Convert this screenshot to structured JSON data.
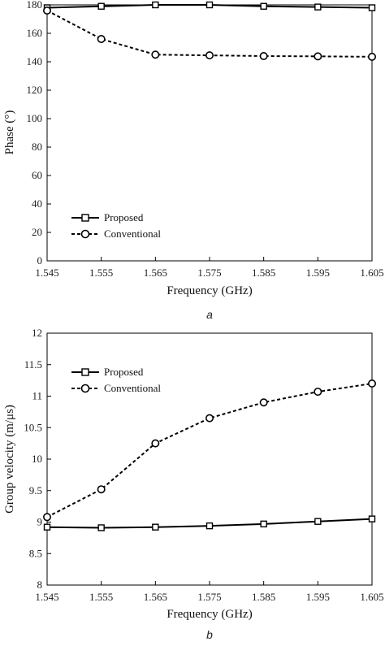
{
  "chart_data": [
    {
      "type": "line",
      "panel_label": "a",
      "xlabel": "Frequency (GHz)",
      "ylabel": "Phase (°)",
      "x": [
        1.545,
        1.555,
        1.565,
        1.575,
        1.585,
        1.595,
        1.605
      ],
      "xticks": [
        "1.545",
        "1.555",
        "1.565",
        "1.575",
        "1.585",
        "1.595",
        "1.605"
      ],
      "xlim": [
        1.545,
        1.605
      ],
      "ylim": [
        0,
        180
      ],
      "yticks": [
        "0",
        "20",
        "40",
        "60",
        "80",
        "100",
        "120",
        "140",
        "160",
        "180"
      ],
      "legend_position": "bottom-left",
      "series": [
        {
          "name": "Proposed",
          "marker": "square",
          "line": "solid",
          "values": [
            178,
            179,
            180,
            180,
            179,
            178.5,
            178
          ]
        },
        {
          "name": "Conventional",
          "marker": "circle",
          "line": "dashed",
          "values": [
            176,
            156,
            145,
            144.5,
            144,
            143.8,
            143.5
          ]
        }
      ]
    },
    {
      "type": "line",
      "panel_label": "b",
      "xlabel": "Frequency (GHz)",
      "ylabel": "Group velocity (m/μs)",
      "x": [
        1.545,
        1.555,
        1.565,
        1.575,
        1.585,
        1.595,
        1.605
      ],
      "xticks": [
        "1.545",
        "1.555",
        "1.565",
        "1.575",
        "1.585",
        "1.595",
        "1.605"
      ],
      "xlim": [
        1.545,
        1.605
      ],
      "ylim": [
        8,
        12
      ],
      "yticks": [
        "8",
        "8.5",
        "9",
        "9.5",
        "10",
        "10.5",
        "11",
        "11.5",
        "12"
      ],
      "legend_position": "top-left",
      "series": [
        {
          "name": "Proposed",
          "marker": "square",
          "line": "solid",
          "values": [
            8.92,
            8.91,
            8.92,
            8.94,
            8.97,
            9.01,
            9.05
          ]
        },
        {
          "name": "Conventional",
          "marker": "circle",
          "line": "dashed",
          "values": [
            9.08,
            9.52,
            10.25,
            10.65,
            10.9,
            11.07,
            11.2
          ]
        }
      ]
    }
  ]
}
